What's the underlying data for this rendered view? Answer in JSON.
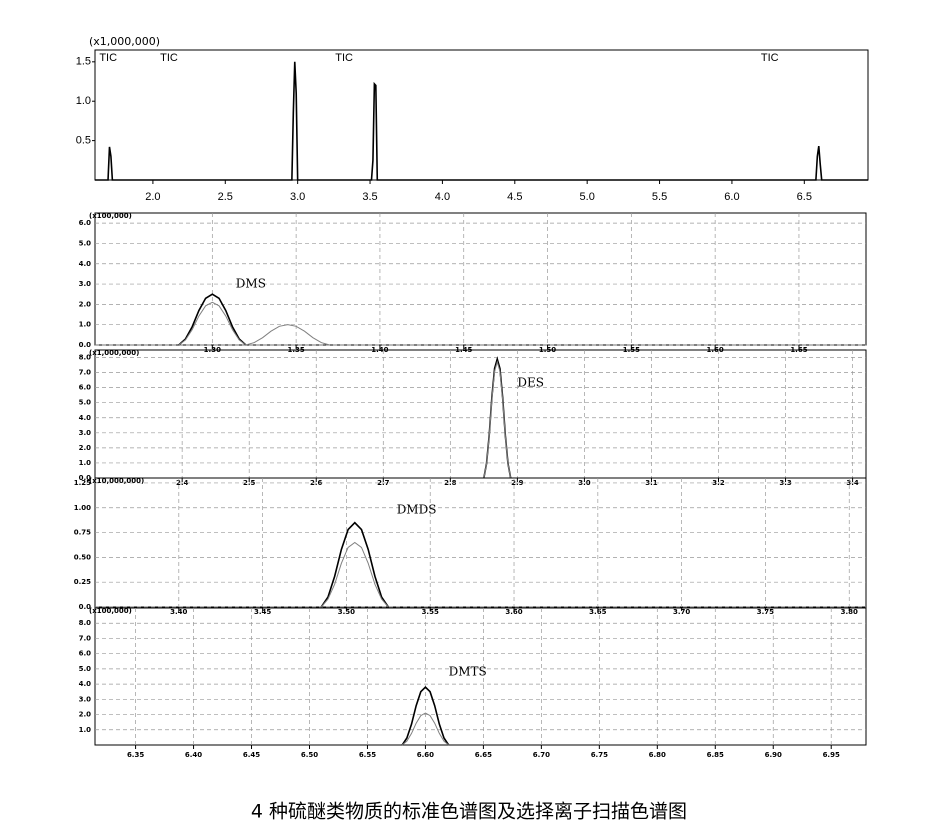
{
  "caption": "4 种硫醚类物质的标准色谱图及选择离子扫描色谱图",
  "chart_data": [
    {
      "type": "line",
      "multiplier": "(x1,000,000)",
      "grid": false,
      "xlim": [
        1.6,
        6.94
      ],
      "ylim": [
        0,
        1.65
      ],
      "xticks": [
        {
          "value": 2,
          "label": "2.0"
        },
        {
          "value": 2.5,
          "label": "2.5"
        },
        {
          "value": 3,
          "label": "3.0"
        },
        {
          "value": 3.5,
          "label": "3.5"
        },
        {
          "value": 4,
          "label": "4.0"
        },
        {
          "value": 4.5,
          "label": "4.5"
        },
        {
          "value": 5,
          "label": "5.0"
        },
        {
          "value": 5.5,
          "label": "5.5"
        },
        {
          "value": 6,
          "label": "6.0"
        },
        {
          "value": 6.5,
          "label": "6.5"
        }
      ],
      "yticks": [
        0.5,
        {
          "value": 1,
          "label": "1.0"
        },
        1.5
      ],
      "annotations": [
        {
          "text": "TIC",
          "x": 1.63,
          "y": 1.55
        },
        {
          "text": "TIC",
          "x": 2.05,
          "y": 1.55
        },
        {
          "text": "TIC",
          "x": 3.26,
          "y": 1.55
        },
        {
          "text": "TIC",
          "x": 6.2,
          "y": 1.55
        }
      ],
      "series": [
        {
          "color": "#000000",
          "x": [
            1.6,
            1.69,
            1.7,
            1.71,
            1.72,
            2.96,
            2.97,
            2.98,
            2.99,
            3.0,
            3.51,
            3.52,
            3.53,
            3.54,
            3.55,
            6.58,
            6.59,
            6.6,
            6.61,
            6.62,
            6.94
          ],
          "values": [
            0,
            0,
            0.42,
            0.3,
            0,
            0,
            0.85,
            1.5,
            1.1,
            0,
            0,
            0.25,
            1.22,
            1.2,
            0,
            0,
            0.3,
            0.43,
            0.2,
            0,
            0
          ]
        }
      ]
    },
    {
      "type": "line",
      "multiplier": "(x100,000)",
      "grid": true,
      "xlim": [
        1.23,
        1.69
      ],
      "ylim": [
        0,
        6.5
      ],
      "xticks": [
        {
          "value": 1.3,
          "label": "1.30"
        },
        1.35,
        {
          "value": 1.4,
          "label": "1.40"
        },
        1.45,
        {
          "value": 1.5,
          "label": "1.50"
        },
        1.55,
        {
          "value": 1.6,
          "label": "1.60"
        },
        1.65
      ],
      "yticks": [
        {
          "value": 0,
          "label": "0.0"
        },
        {
          "value": 1,
          "label": "1.0"
        },
        {
          "value": 2,
          "label": "2.0"
        },
        {
          "value": 3,
          "label": "3.0"
        },
        {
          "value": 4,
          "label": "4.0"
        },
        {
          "value": 5,
          "label": "5.0"
        },
        {
          "value": 6,
          "label": "6.0"
        }
      ],
      "annotations": [
        {
          "text": "DMS",
          "x": 1.314,
          "y": 3.0
        }
      ],
      "series": [
        {
          "color": "#000000",
          "x": [
            1.28,
            1.284,
            1.288,
            1.292,
            1.296,
            1.3,
            1.304,
            1.308,
            1.312,
            1.316,
            1.32
          ],
          "values": [
            0,
            0.3,
            0.9,
            1.7,
            2.3,
            2.5,
            2.3,
            1.7,
            0.9,
            0.3,
            0
          ]
        },
        {
          "color": "#808080",
          "x": [
            1.28,
            1.284,
            1.288,
            1.292,
            1.296,
            1.3,
            1.304,
            1.308,
            1.312,
            1.316,
            1.32,
            1.325,
            1.33,
            1.335,
            1.34,
            1.345,
            1.35,
            1.355,
            1.36,
            1.365,
            1.37
          ],
          "values": [
            0,
            0.25,
            0.76,
            1.43,
            1.93,
            2.1,
            1.93,
            1.43,
            0.76,
            0.25,
            0,
            0.12,
            0.36,
            0.68,
            0.92,
            1.0,
            0.92,
            0.68,
            0.36,
            0.12,
            0
          ]
        }
      ]
    },
    {
      "type": "line",
      "multiplier": "(x1,000,000)",
      "grid": true,
      "xlim": [
        2.27,
        3.42
      ],
      "ylim": [
        0,
        8.5
      ],
      "xticks": [
        2.4,
        2.5,
        2.6,
        2.7,
        2.8,
        2.9,
        {
          "value": 3,
          "label": "3.0"
        },
        3.1,
        3.2,
        3.3,
        3.4
      ],
      "yticks": [
        {
          "value": 0,
          "label": "0.0"
        },
        {
          "value": 1,
          "label": "1.0"
        },
        {
          "value": 2,
          "label": "2.0"
        },
        {
          "value": 3,
          "label": "3.0"
        },
        {
          "value": 4,
          "label": "4.0"
        },
        {
          "value": 5,
          "label": "5.0"
        },
        {
          "value": 6,
          "label": "6.0"
        },
        {
          "value": 7,
          "label": "7.0"
        },
        {
          "value": 8,
          "label": "8.0"
        }
      ],
      "annotations": [
        {
          "text": "DES",
          "x": 2.9,
          "y": 6.3
        }
      ],
      "series": [
        {
          "color": "#000000",
          "x": [
            2.85,
            2.854,
            2.858,
            2.862,
            2.866,
            2.87,
            2.874,
            2.878,
            2.882,
            2.886,
            2.89
          ],
          "values": [
            0,
            0.95,
            2.84,
            5.37,
            7.27,
            7.9,
            7.27,
            5.37,
            2.84,
            0.95,
            0
          ]
        },
        {
          "color": "#808080",
          "x": [
            2.85,
            2.854,
            2.858,
            2.862,
            2.866,
            2.87,
            2.874,
            2.878,
            2.882,
            2.886,
            2.89
          ],
          "values": [
            0,
            0.92,
            2.77,
            5.24,
            7.08,
            7.7,
            7.08,
            5.24,
            2.77,
            0.92,
            0
          ]
        }
      ]
    },
    {
      "type": "line",
      "multiplier": "(x10,000,000)",
      "grid": true,
      "xlim": [
        3.35,
        3.81
      ],
      "ylim": [
        0,
        1.3
      ],
      "xticks": [
        {
          "value": 3.4,
          "label": "3.40"
        },
        3.45,
        {
          "value": 3.5,
          "label": "3.50"
        },
        3.55,
        {
          "value": 3.6,
          "label": "3.60"
        },
        3.65,
        {
          "value": 3.7,
          "label": "3.70"
        },
        3.75,
        {
          "value": 3.8,
          "label": "3.80"
        }
      ],
      "yticks": [
        {
          "value": 0,
          "label": "0.0"
        },
        0.25,
        {
          "value": 0.5,
          "label": "0.50"
        },
        0.75,
        {
          "value": 1,
          "label": "1.00"
        },
        1.25
      ],
      "annotations": [
        {
          "text": "DMDS",
          "x": 3.53,
          "y": 0.98
        }
      ],
      "series": [
        {
          "color": "#000000",
          "x": [
            3.485,
            3.489,
            3.493,
            3.497,
            3.501,
            3.505,
            3.509,
            3.513,
            3.517,
            3.521,
            3.525
          ],
          "values": [
            0,
            0.1,
            0.31,
            0.58,
            0.78,
            0.85,
            0.78,
            0.58,
            0.31,
            0.1,
            0
          ]
        },
        {
          "color": "#808080",
          "x": [
            3.485,
            3.489,
            3.493,
            3.497,
            3.501,
            3.505,
            3.509,
            3.513,
            3.517,
            3.521,
            3.525
          ],
          "values": [
            0,
            0.08,
            0.23,
            0.44,
            0.6,
            0.65,
            0.6,
            0.44,
            0.23,
            0.08,
            0
          ]
        }
      ]
    },
    {
      "type": "line",
      "multiplier": "(x100,000)",
      "grid": true,
      "xlim": [
        6.315,
        6.98
      ],
      "ylim": [
        0,
        9
      ],
      "xticks": [
        6.35,
        {
          "value": 6.4,
          "label": "6.40"
        },
        6.45,
        {
          "value": 6.5,
          "label": "6.50"
        },
        6.55,
        {
          "value": 6.6,
          "label": "6.60"
        },
        6.65,
        {
          "value": 6.7,
          "label": "6.70"
        },
        6.75,
        {
          "value": 6.8,
          "label": "6.80"
        },
        6.85,
        {
          "value": 6.9,
          "label": "6.90"
        },
        6.95
      ],
      "yticks": [
        {
          "value": 1,
          "label": "1.0"
        },
        {
          "value": 2,
          "label": "2.0"
        },
        {
          "value": 3,
          "label": "3.0"
        },
        {
          "value": 4,
          "label": "4.0"
        },
        {
          "value": 5,
          "label": "5.0"
        },
        {
          "value": 6,
          "label": "6.0"
        },
        {
          "value": 7,
          "label": "7.0"
        },
        {
          "value": 8,
          "label": "8.0"
        }
      ],
      "annotations": [
        {
          "text": "DMTS",
          "x": 6.62,
          "y": 4.8
        }
      ],
      "series": [
        {
          "color": "#000000",
          "x": [
            6.58,
            6.584,
            6.588,
            6.592,
            6.596,
            6.6,
            6.604,
            6.608,
            6.612,
            6.616,
            6.62
          ],
          "values": [
            0,
            0.46,
            1.37,
            2.58,
            3.5,
            3.8,
            3.5,
            2.58,
            1.37,
            0.46,
            0
          ]
        },
        {
          "color": "#808080",
          "x": [
            6.58,
            6.584,
            6.588,
            6.592,
            6.596,
            6.6,
            6.604,
            6.608,
            6.612,
            6.616,
            6.62
          ],
          "values": [
            0,
            0.25,
            0.76,
            1.43,
            1.93,
            2.1,
            1.93,
            1.43,
            0.76,
            0.25,
            0
          ]
        }
      ]
    }
  ]
}
